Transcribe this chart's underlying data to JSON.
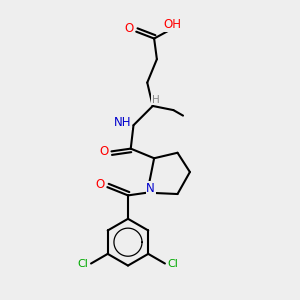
{
  "bg_color": "#eeeeee",
  "atom_colors": {
    "C": "#000000",
    "N": "#0000cc",
    "O": "#ff0000",
    "Cl": "#00aa00",
    "H": "#888888"
  },
  "bond_color": "#000000",
  "bond_width": 1.5,
  "figsize": [
    3.0,
    3.0
  ],
  "dpi": 100
}
